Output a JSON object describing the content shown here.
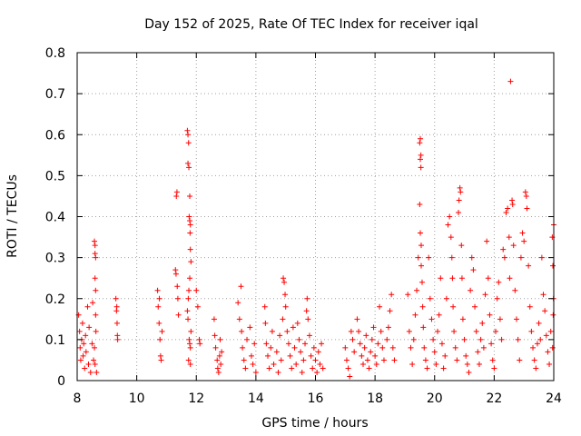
{
  "chart_data": {
    "type": "scatter",
    "title": "Day 152 of 2025, Rate Of TEC Index for receiver iqal",
    "xlabel": "GPS time / hours",
    "ylabel": "ROTI / TECUs",
    "xlim": [
      8,
      24
    ],
    "ylim": [
      0,
      0.8
    ],
    "x_ticks": [
      8,
      10,
      12,
      14,
      16,
      18,
      20,
      22,
      24
    ],
    "y_ticks": [
      0,
      0.1,
      0.2,
      0.3,
      0.4,
      0.5,
      0.6,
      0.7,
      0.8
    ],
    "x_tick_labels": [
      "8",
      "10",
      "12",
      "14",
      "16",
      "18",
      "20",
      "22",
      "24"
    ],
    "y_tick_labels": [
      "0",
      "0.1",
      "0.2",
      "0.3",
      "0.4",
      "0.5",
      "0.6",
      "0.7",
      "0.8"
    ],
    "grid": true,
    "marker": "+",
    "color": "#ff0000",
    "series": [
      {
        "name": "ROTI",
        "points": [
          [
            8.05,
            0.16
          ],
          [
            8.08,
            0.12
          ],
          [
            8.1,
            0.08
          ],
          [
            8.12,
            0.05
          ],
          [
            8.15,
            0.1
          ],
          [
            8.18,
            0.14
          ],
          [
            8.2,
            0.06
          ],
          [
            8.22,
            0.09
          ],
          [
            8.25,
            0.03
          ],
          [
            8.28,
            0.11
          ],
          [
            8.3,
            0.07
          ],
          [
            8.35,
            0.18
          ],
          [
            8.38,
            0.04
          ],
          [
            8.4,
            0.13
          ],
          [
            8.45,
            0.02
          ],
          [
            8.5,
            0.09
          ],
          [
            8.52,
            0.19
          ],
          [
            8.55,
            0.05
          ],
          [
            8.58,
            0.34
          ],
          [
            8.6,
            0.33
          ],
          [
            8.6,
            0.31
          ],
          [
            8.62,
            0.3
          ],
          [
            8.6,
            0.25
          ],
          [
            8.62,
            0.16
          ],
          [
            8.63,
            0.12
          ],
          [
            8.6,
            0.04
          ],
          [
            8.65,
            0.02
          ],
          [
            8.58,
            0.08
          ],
          [
            8.62,
            0.22
          ],
          [
            9.3,
            0.2
          ],
          [
            9.32,
            0.17
          ],
          [
            9.34,
            0.14
          ],
          [
            9.35,
            0.11
          ],
          [
            9.36,
            0.1
          ],
          [
            9.33,
            0.18
          ],
          [
            10.7,
            0.22
          ],
          [
            10.72,
            0.18
          ],
          [
            10.75,
            0.14
          ],
          [
            10.78,
            0.1
          ],
          [
            10.8,
            0.06
          ],
          [
            10.82,
            0.05
          ],
          [
            10.85,
            0.12
          ],
          [
            10.76,
            0.2
          ],
          [
            11.3,
            0.27
          ],
          [
            11.32,
            0.26
          ],
          [
            11.35,
            0.46
          ],
          [
            11.33,
            0.45
          ],
          [
            11.38,
            0.2
          ],
          [
            11.4,
            0.16
          ],
          [
            11.36,
            0.23
          ],
          [
            11.7,
            0.61
          ],
          [
            11.72,
            0.6
          ],
          [
            11.74,
            0.58
          ],
          [
            11.72,
            0.53
          ],
          [
            11.75,
            0.52
          ],
          [
            11.78,
            0.45
          ],
          [
            11.76,
            0.4
          ],
          [
            11.78,
            0.39
          ],
          [
            11.8,
            0.38
          ],
          [
            11.79,
            0.36
          ],
          [
            11.8,
            0.32
          ],
          [
            11.82,
            0.29
          ],
          [
            11.78,
            0.25
          ],
          [
            11.75,
            0.22
          ],
          [
            11.73,
            0.2
          ],
          [
            11.7,
            0.17
          ],
          [
            11.72,
            0.15
          ],
          [
            11.76,
            0.1
          ],
          [
            11.78,
            0.09
          ],
          [
            11.8,
            0.08
          ],
          [
            11.74,
            0.05
          ],
          [
            11.8,
            0.04
          ],
          [
            11.82,
            0.12
          ],
          [
            12.0,
            0.22
          ],
          [
            12.05,
            0.18
          ],
          [
            12.1,
            0.1
          ],
          [
            12.12,
            0.09
          ],
          [
            12.6,
            0.15
          ],
          [
            12.62,
            0.11
          ],
          [
            12.65,
            0.08
          ],
          [
            12.7,
            0.05
          ],
          [
            12.72,
            0.03
          ],
          [
            12.75,
            0.02
          ],
          [
            12.78,
            0.06
          ],
          [
            12.8,
            0.1
          ],
          [
            12.82,
            0.04
          ],
          [
            12.85,
            0.07
          ],
          [
            13.4,
            0.19
          ],
          [
            13.45,
            0.15
          ],
          [
            13.5,
            0.23
          ],
          [
            13.52,
            0.12
          ],
          [
            13.55,
            0.08
          ],
          [
            13.6,
            0.05
          ],
          [
            13.65,
            0.03
          ],
          [
            13.7,
            0.1
          ],
          [
            13.8,
            0.13
          ],
          [
            13.85,
            0.06
          ],
          [
            13.9,
            0.04
          ],
          [
            13.95,
            0.09
          ],
          [
            14.0,
            0.02
          ],
          [
            14.3,
            0.18
          ],
          [
            14.32,
            0.14
          ],
          [
            14.35,
            0.09
          ],
          [
            14.4,
            0.06
          ],
          [
            14.45,
            0.03
          ],
          [
            14.5,
            0.08
          ],
          [
            14.55,
            0.12
          ],
          [
            14.6,
            0.04
          ],
          [
            14.7,
            0.07
          ],
          [
            14.75,
            0.02
          ],
          [
            14.8,
            0.11
          ],
          [
            14.85,
            0.05
          ],
          [
            14.9,
            0.15
          ],
          [
            14.92,
            0.25
          ],
          [
            14.95,
            0.24
          ],
          [
            14.98,
            0.21
          ],
          [
            15.0,
            0.18
          ],
          [
            15.05,
            0.12
          ],
          [
            15.1,
            0.09
          ],
          [
            15.15,
            0.06
          ],
          [
            15.2,
            0.03
          ],
          [
            15.25,
            0.13
          ],
          [
            15.3,
            0.08
          ],
          [
            15.35,
            0.04
          ],
          [
            15.4,
            0.14
          ],
          [
            15.45,
            0.1
          ],
          [
            15.5,
            0.07
          ],
          [
            15.55,
            0.02
          ],
          [
            15.6,
            0.05
          ],
          [
            15.65,
            0.09
          ],
          [
            15.7,
            0.17
          ],
          [
            15.72,
            0.2
          ],
          [
            15.75,
            0.15
          ],
          [
            15.8,
            0.11
          ],
          [
            15.85,
            0.06
          ],
          [
            15.9,
            0.03
          ],
          [
            15.95,
            0.08
          ],
          [
            16.0,
            0.05
          ],
          [
            16.05,
            0.02
          ],
          [
            16.1,
            0.07
          ],
          [
            16.15,
            0.04
          ],
          [
            16.2,
            0.09
          ],
          [
            16.25,
            0.03
          ],
          [
            17.0,
            0.08
          ],
          [
            17.05,
            0.05
          ],
          [
            17.1,
            0.03
          ],
          [
            17.15,
            0.01
          ],
          [
            17.2,
            0.12
          ],
          [
            17.25,
            0.1
          ],
          [
            17.3,
            0.07
          ],
          [
            17.4,
            0.15
          ],
          [
            17.45,
            0.12
          ],
          [
            17.5,
            0.09
          ],
          [
            17.55,
            0.06
          ],
          [
            17.6,
            0.04
          ],
          [
            17.65,
            0.08
          ],
          [
            17.7,
            0.11
          ],
          [
            17.75,
            0.05
          ],
          [
            17.8,
            0.03
          ],
          [
            17.85,
            0.07
          ],
          [
            17.9,
            0.1
          ],
          [
            17.95,
            0.13
          ],
          [
            18.0,
            0.06
          ],
          [
            18.05,
            0.04
          ],
          [
            18.1,
            0.09
          ],
          [
            18.15,
            0.18
          ],
          [
            18.2,
            0.12
          ],
          [
            18.25,
            0.08
          ],
          [
            18.3,
            0.05
          ],
          [
            18.4,
            0.1
          ],
          [
            18.45,
            0.13
          ],
          [
            18.5,
            0.17
          ],
          [
            18.55,
            0.21
          ],
          [
            18.6,
            0.08
          ],
          [
            18.65,
            0.05
          ],
          [
            19.1,
            0.21
          ],
          [
            19.15,
            0.12
          ],
          [
            19.2,
            0.08
          ],
          [
            19.25,
            0.04
          ],
          [
            19.3,
            0.1
          ],
          [
            19.35,
            0.16
          ],
          [
            19.4,
            0.22
          ],
          [
            19.45,
            0.3
          ],
          [
            19.5,
            0.58
          ],
          [
            19.52,
            0.59
          ],
          [
            19.54,
            0.55
          ],
          [
            19.52,
            0.54
          ],
          [
            19.54,
            0.52
          ],
          [
            19.5,
            0.43
          ],
          [
            19.52,
            0.36
          ],
          [
            19.55,
            0.33
          ],
          [
            19.55,
            0.28
          ],
          [
            19.58,
            0.24
          ],
          [
            19.6,
            0.18
          ],
          [
            19.62,
            0.13
          ],
          [
            19.65,
            0.08
          ],
          [
            19.7,
            0.05
          ],
          [
            19.75,
            0.03
          ],
          [
            19.8,
            0.3
          ],
          [
            19.85,
            0.2
          ],
          [
            19.9,
            0.15
          ],
          [
            19.95,
            0.1
          ],
          [
            20.0,
            0.07
          ],
          [
            20.05,
            0.04
          ],
          [
            20.1,
            0.12
          ],
          [
            20.15,
            0.16
          ],
          [
            20.2,
            0.25
          ],
          [
            20.25,
            0.09
          ],
          [
            20.3,
            0.03
          ],
          [
            20.35,
            0.06
          ],
          [
            20.4,
            0.2
          ],
          [
            20.45,
            0.38
          ],
          [
            20.5,
            0.4
          ],
          [
            20.55,
            0.35
          ],
          [
            20.58,
            0.3
          ],
          [
            20.6,
            0.25
          ],
          [
            20.62,
            0.18
          ],
          [
            20.65,
            0.12
          ],
          [
            20.7,
            0.08
          ],
          [
            20.75,
            0.05
          ],
          [
            20.8,
            0.41
          ],
          [
            20.82,
            0.44
          ],
          [
            20.85,
            0.47
          ],
          [
            20.87,
            0.46
          ],
          [
            20.9,
            0.33
          ],
          [
            20.92,
            0.25
          ],
          [
            20.95,
            0.15
          ],
          [
            21.0,
            0.1
          ],
          [
            21.05,
            0.06
          ],
          [
            21.1,
            0.04
          ],
          [
            21.15,
            0.02
          ],
          [
            21.2,
            0.22
          ],
          [
            21.25,
            0.3
          ],
          [
            21.3,
            0.27
          ],
          [
            21.35,
            0.18
          ],
          [
            21.4,
            0.12
          ],
          [
            21.45,
            0.07
          ],
          [
            21.5,
            0.04
          ],
          [
            21.55,
            0.1
          ],
          [
            21.6,
            0.14
          ],
          [
            21.65,
            0.08
          ],
          [
            21.7,
            0.21
          ],
          [
            21.75,
            0.34
          ],
          [
            21.8,
            0.25
          ],
          [
            21.85,
            0.16
          ],
          [
            21.9,
            0.09
          ],
          [
            21.95,
            0.05
          ],
          [
            22.0,
            0.03
          ],
          [
            22.05,
            0.12
          ],
          [
            22.1,
            0.2
          ],
          [
            22.15,
            0.24
          ],
          [
            22.2,
            0.15
          ],
          [
            22.25,
            0.1
          ],
          [
            22.3,
            0.32
          ],
          [
            22.35,
            0.3
          ],
          [
            22.4,
            0.41
          ],
          [
            22.45,
            0.42
          ],
          [
            22.5,
            0.35
          ],
          [
            22.52,
            0.25
          ],
          [
            22.55,
            0.73
          ],
          [
            22.6,
            0.44
          ],
          [
            22.62,
            0.43
          ],
          [
            22.65,
            0.33
          ],
          [
            22.7,
            0.22
          ],
          [
            22.75,
            0.15
          ],
          [
            22.8,
            0.1
          ],
          [
            22.85,
            0.05
          ],
          [
            22.9,
            0.3
          ],
          [
            22.95,
            0.36
          ],
          [
            23.0,
            0.34
          ],
          [
            23.05,
            0.46
          ],
          [
            23.08,
            0.45
          ],
          [
            23.1,
            0.42
          ],
          [
            23.15,
            0.28
          ],
          [
            23.2,
            0.18
          ],
          [
            23.25,
            0.12
          ],
          [
            23.3,
            0.08
          ],
          [
            23.35,
            0.05
          ],
          [
            23.4,
            0.03
          ],
          [
            23.45,
            0.09
          ],
          [
            23.5,
            0.14
          ],
          [
            23.55,
            0.1
          ],
          [
            23.6,
            0.3
          ],
          [
            23.65,
            0.21
          ],
          [
            23.7,
            0.17
          ],
          [
            23.75,
            0.11
          ],
          [
            23.8,
            0.07
          ],
          [
            23.85,
            0.04
          ],
          [
            23.9,
            0.12
          ],
          [
            23.95,
            0.35
          ],
          [
            23.97,
            0.28
          ],
          [
            23.98,
            0.16
          ],
          [
            24.0,
            0.38
          ],
          [
            23.99,
            0.2
          ],
          [
            23.96,
            0.08
          ]
        ]
      }
    ]
  }
}
